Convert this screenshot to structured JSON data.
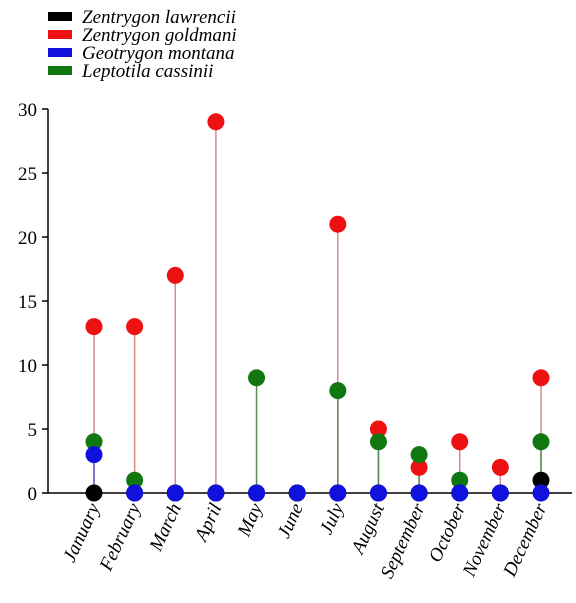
{
  "chart_data": {
    "type": "lollipop",
    "categories": [
      "January",
      "February",
      "March",
      "April",
      "May",
      "June",
      "July",
      "August",
      "September",
      "October",
      "November",
      "December"
    ],
    "series": [
      {
        "name": "Zentrygon lawrencii",
        "color": "#000000",
        "values": [
          0,
          0,
          0,
          0,
          0,
          0,
          0,
          0,
          0,
          0,
          0,
          1
        ]
      },
      {
        "name": "Zentrygon goldmani",
        "color": "#ee1111",
        "values": [
          13,
          13,
          17,
          29,
          0,
          0,
          21,
          5,
          2,
          4,
          2,
          9
        ]
      },
      {
        "name": "Geotrygon montana",
        "color": "#1111dd",
        "values": [
          3,
          0,
          0,
          0,
          0,
          0,
          0,
          0,
          0,
          0,
          0,
          0
        ]
      },
      {
        "name": "Leptotila cassinii",
        "color": "#117711",
        "values": [
          4,
          1,
          0,
          0,
          9,
          0,
          8,
          4,
          3,
          1,
          0,
          4
        ]
      }
    ],
    "draw_order": [
      1,
      3,
      0,
      2
    ],
    "stem_colors": {
      "Zentrygon lawrencii": "#000000",
      "Zentrygon goldmani": "#d98a8a",
      "Geotrygon montana": "#6a6ad8",
      "Leptotila cassinii": "#5a8a5a"
    },
    "ylim": [
      0,
      30
    ],
    "yticks": [
      0,
      5,
      10,
      15,
      20,
      25,
      30
    ],
    "legend_position": "top-left",
    "grid": false
  }
}
